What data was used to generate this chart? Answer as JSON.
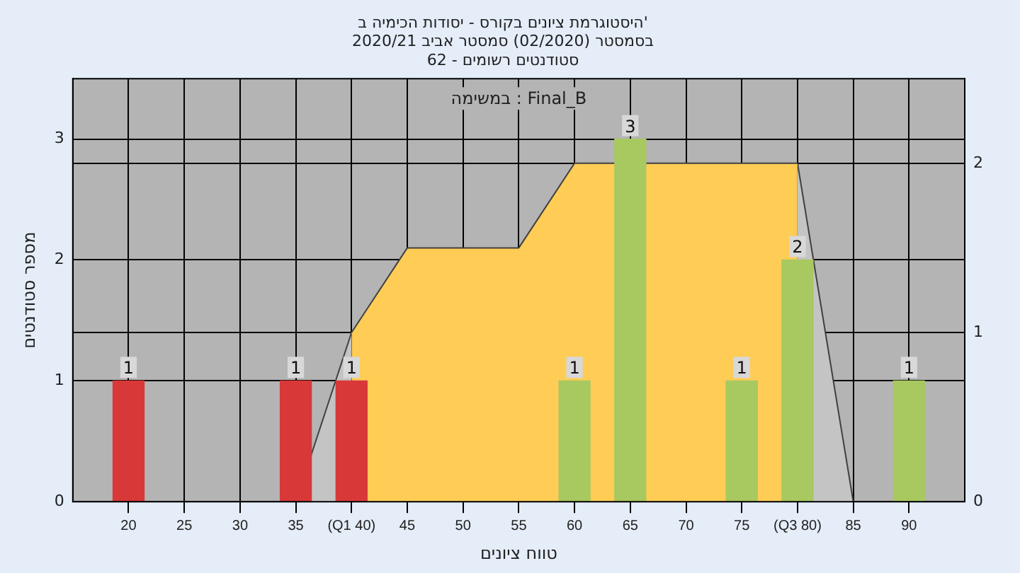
{
  "chart_data": {
    "type": "bar",
    "title": "היסטוגרמת ציונים בקורס - יסודות הכימיה ב'\nבסמסטר (02/2020) סמסטר אביב 2020/21\nסטודנטים רשומים - 62",
    "annotations": [
      "במשימה : Final_B"
    ],
    "xlabel": "טווח ציונים",
    "ylabel": "מספר סטודנטים",
    "xlim": [
      15,
      95
    ],
    "xticks": [
      20,
      25,
      30,
      35,
      {
        "value": 40,
        "label": "(Q1 40)"
      },
      45,
      50,
      55,
      60,
      65,
      70,
      75,
      {
        "value": 80,
        "label": "(Q3 80)"
      },
      85,
      90
    ],
    "ylim": [
      0,
      3.5
    ],
    "yticks": [
      0,
      1,
      2,
      3
    ],
    "y2lim": [
      0,
      2.5
    ],
    "y2ticks": [
      0,
      1,
      2
    ],
    "series": [
      {
        "type": "area",
        "axis": "y2",
        "color": "#ffcc55",
        "x": [
          40,
          45,
          55,
          60,
          80
        ],
        "values": [
          1,
          1.5,
          1.5,
          2,
          2
        ]
      },
      {
        "type": "area",
        "axis": "y2",
        "color": "#c4c4c4",
        "x": [
          35,
          40
        ],
        "values": [
          0,
          1
        ]
      },
      {
        "type": "area",
        "axis": "y2",
        "color": "#c4c4c4",
        "x": [
          80,
          85
        ],
        "values": [
          2,
          0
        ]
      },
      {
        "type": "bar",
        "x": [
          20,
          35,
          40,
          60,
          65,
          75,
          80,
          90
        ],
        "values": [
          1,
          1,
          1,
          1,
          3,
          1,
          2,
          1
        ],
        "value_labels": [
          "1",
          "1",
          "1",
          "1",
          "3",
          "1",
          "2",
          "1"
        ],
        "colors": [
          "#d83838",
          "#d83838",
          "#d83838",
          "#a8c860",
          "#a8c860",
          "#a8c860",
          "#a8c860",
          "#a8c860"
        ]
      }
    ],
    "grid": true,
    "legend": false
  }
}
